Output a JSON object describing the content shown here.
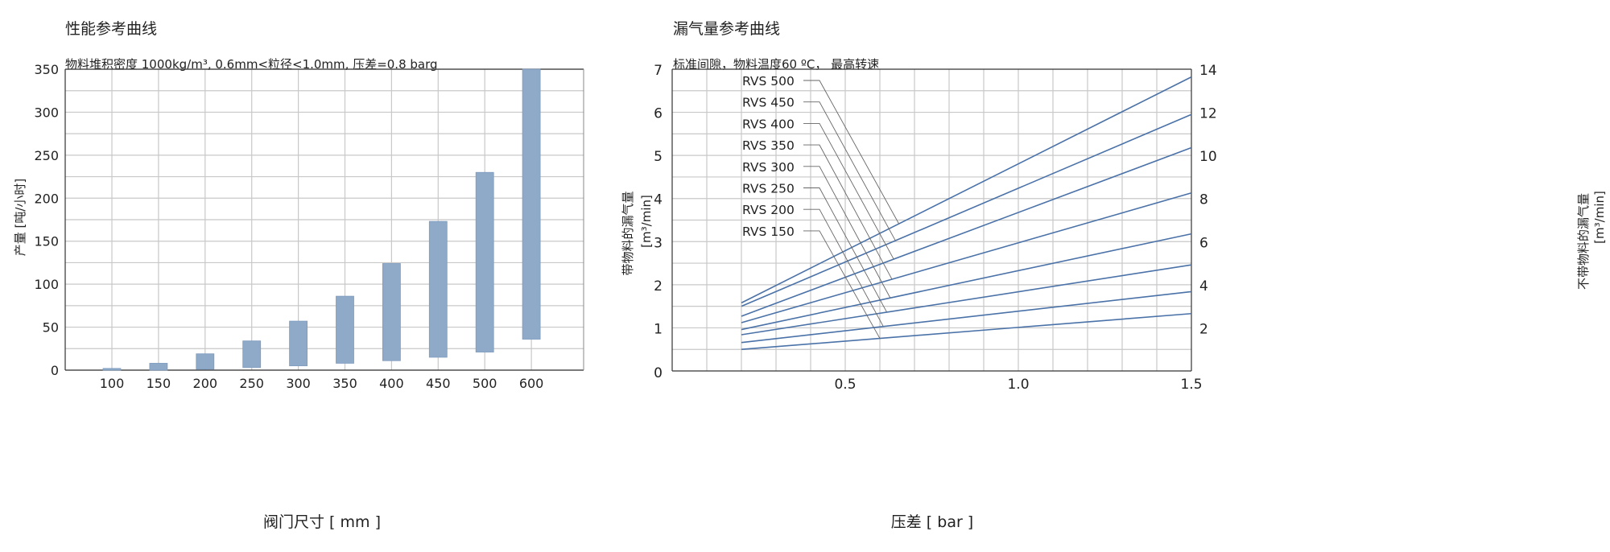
{
  "chart_data": [
    {
      "type": "bar",
      "title": "性能参考曲线",
      "subtitle": "物料堆积密度 1000kg/m³, 0.6mm<粒径<1.0mm, 压差=0.8 barg",
      "xlabel": "阀门尺寸 [ mm ]",
      "ylabel": "产量 [吨/小时]",
      "ylim": [
        0,
        350
      ],
      "yticks": [
        "0",
        "50",
        "100",
        "150",
        "200",
        "250",
        "300",
        "350"
      ],
      "grid": true,
      "categories": [
        "100",
        "150",
        "200",
        "250",
        "300",
        "350",
        "400",
        "450",
        "500",
        "600"
      ],
      "ranges": [
        [
          0,
          2
        ],
        [
          0,
          8
        ],
        [
          1,
          19
        ],
        [
          3,
          34
        ],
        [
          5,
          57
        ],
        [
          8,
          86
        ],
        [
          11,
          124
        ],
        [
          15,
          173
        ],
        [
          21,
          230
        ],
        [
          36,
          350
        ]
      ],
      "color": "#8eaac8"
    },
    {
      "type": "line",
      "title": "漏气量参考曲线",
      "subtitle": "标准间隙，物料温度60 ºC， 最高转速",
      "xlabel": "压差 [ bar ]",
      "ylabel": "带物料的漏气量",
      "ylabel_unit": "[m³/min]",
      "y2label": "不带物料的漏气量",
      "y2label_unit": "[m³/min]",
      "xlim": [
        0,
        1.5
      ],
      "ylim": [
        0,
        7
      ],
      "y2lim": [
        0,
        14
      ],
      "xticks": [
        "0.5",
        "1.0",
        "1.5"
      ],
      "yticks": [
        "0",
        "1",
        "2",
        "3",
        "4",
        "5",
        "6",
        "7"
      ],
      "y2ticks": [
        "2",
        "4",
        "6",
        "8",
        "10",
        "12",
        "14"
      ],
      "grid": true,
      "color": "#4a72a8",
      "series": [
        {
          "name": "RVS 500",
          "x": [
            0.2,
            1.5
          ],
          "y": [
            1.58,
            6.82
          ]
        },
        {
          "name": "RVS 450",
          "x": [
            0.2,
            1.5
          ],
          "y": [
            1.5,
            5.95
          ]
        },
        {
          "name": "RVS 400",
          "x": [
            0.2,
            1.5
          ],
          "y": [
            1.27,
            5.18
          ]
        },
        {
          "name": "RVS 350",
          "x": [
            0.2,
            1.5
          ],
          "y": [
            1.12,
            4.13
          ]
        },
        {
          "name": "RVS 300",
          "x": [
            0.2,
            1.5
          ],
          "y": [
            0.96,
            3.18
          ]
        },
        {
          "name": "RVS 250",
          "x": [
            0.2,
            1.5
          ],
          "y": [
            0.84,
            2.46
          ]
        },
        {
          "name": "RVS 200",
          "x": [
            0.2,
            1.5
          ],
          "y": [
            0.66,
            1.84
          ]
        },
        {
          "name": "RVS 150",
          "x": [
            0.2,
            1.5
          ],
          "y": [
            0.5,
            1.33
          ]
        }
      ]
    }
  ]
}
